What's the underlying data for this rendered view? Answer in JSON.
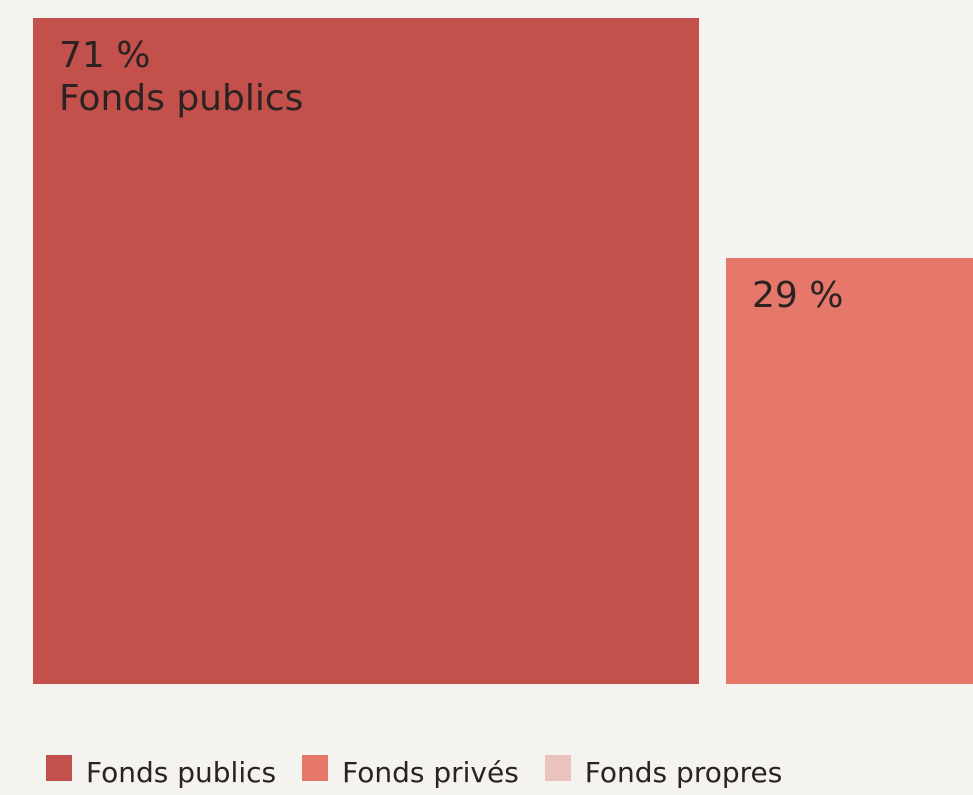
{
  "chart_data": {
    "type": "treemap",
    "title": "",
    "tiles": [
      {
        "name": "Fonds publics",
        "value": 71,
        "value_label": "71 %",
        "name_label": "Fonds publics",
        "color": "#c3504b"
      },
      {
        "name": "Fonds privés",
        "value": 29,
        "value_label": "29 %",
        "name_label": "",
        "color": "#e5786a"
      },
      {
        "name": "Fonds propres",
        "value": 0,
        "value_label": "",
        "name_label": "",
        "color": "#e9c4bd"
      }
    ],
    "legend": {
      "position": "bottom-left",
      "items": [
        {
          "label": "Fonds publics",
          "color": "#c3504b"
        },
        {
          "label": "Fonds privés",
          "color": "#e5786a"
        },
        {
          "label": "Fonds propres",
          "color": "#e9c4bd"
        }
      ]
    },
    "background": "#f4f3ef"
  }
}
